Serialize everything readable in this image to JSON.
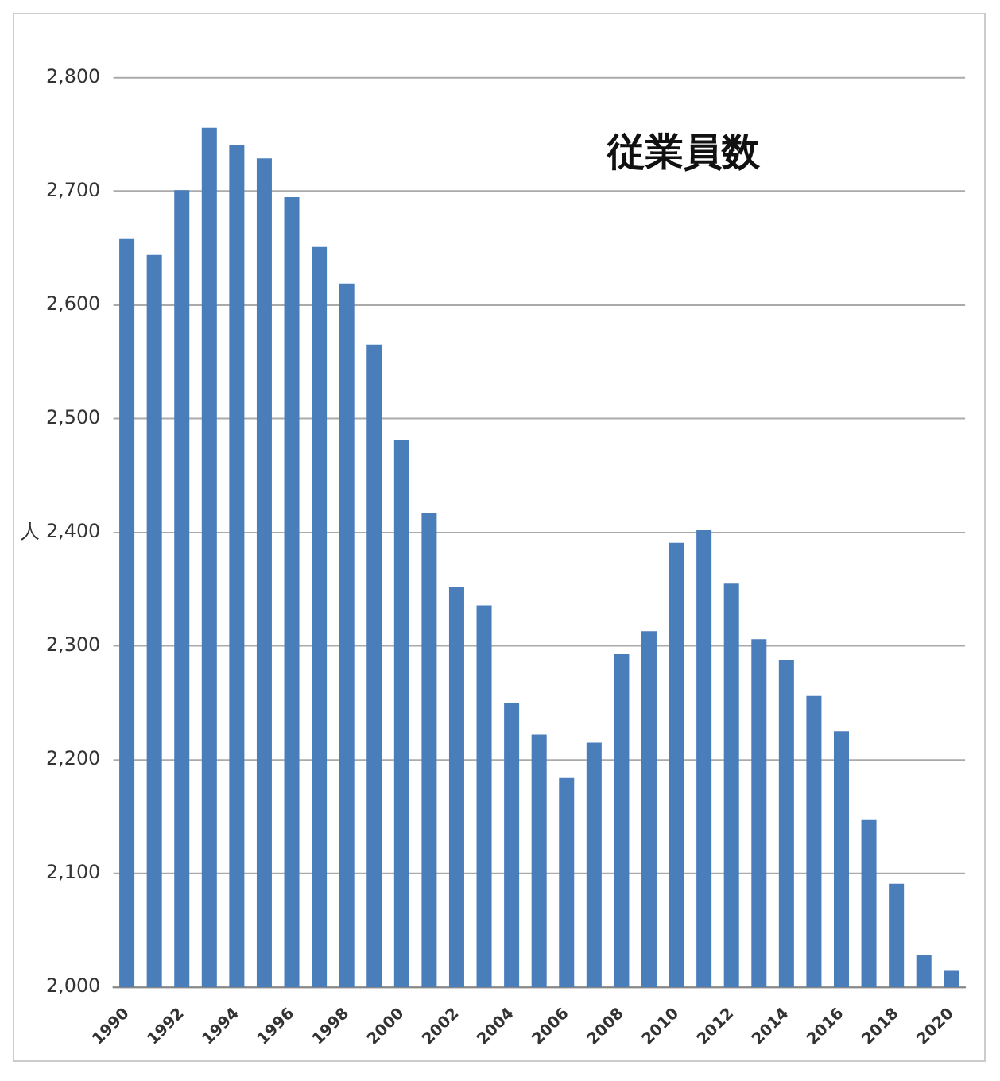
{
  "chart_data": {
    "type": "bar",
    "title": "従業員数",
    "ylabel": "人",
    "categories": [
      "1990",
      null,
      "1992",
      null,
      "1994",
      null,
      "1996",
      null,
      "1998",
      null,
      "2000",
      null,
      "2002",
      null,
      "2004",
      null,
      "2006",
      null,
      "2008",
      null,
      "2010",
      null,
      "2012",
      null,
      "2014",
      null,
      "2016",
      null,
      "2018",
      null,
      "2020"
    ],
    "values": [
      2658,
      2644,
      2701,
      2756,
      2741,
      2729,
      2695,
      2651,
      2619,
      2565,
      2481,
      2417,
      2352,
      2336,
      2250,
      2222,
      2184,
      2215,
      2293,
      2313,
      2391,
      2402,
      2355,
      2306,
      2288,
      2256,
      2225,
      2147,
      2091,
      2028,
      2015
    ],
    "color": "#4a7ebb",
    "ylim": [
      2000,
      2800
    ],
    "yticks": [
      {
        "value": 2000,
        "label": "2,000"
      },
      {
        "value": 2100,
        "label": "2,100"
      },
      {
        "value": 2200,
        "label": "2,200"
      },
      {
        "value": 2300,
        "label": "2,300"
      },
      {
        "value": 2400,
        "label": "2,400"
      },
      {
        "value": 2500,
        "label": "2,500"
      },
      {
        "value": 2600,
        "label": "2,600"
      },
      {
        "value": 2700,
        "label": "2,700"
      },
      {
        "value": 2800,
        "label": "2,800"
      }
    ],
    "grid": "y",
    "legend": false
  }
}
